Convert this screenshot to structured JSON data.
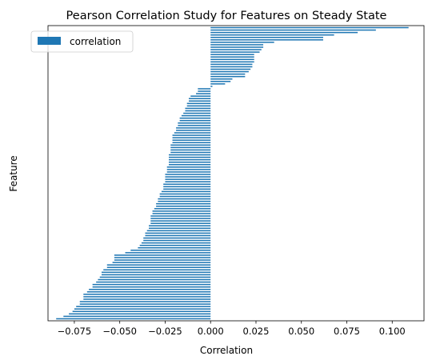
{
  "chart_data": {
    "type": "bar",
    "orientation": "horizontal",
    "title": "Pearson Correlation Study for Features on Steady State",
    "xlabel": "Correlation",
    "ylabel": "Feature",
    "xlim": [
      -0.0895,
      0.1175
    ],
    "xticks": [
      -0.075,
      -0.05,
      -0.025,
      0.0,
      0.025,
      0.05,
      0.075,
      0.1
    ],
    "xtick_labels": [
      "−0.075",
      "−0.050",
      "−0.025",
      "0.000",
      "0.025",
      "0.050",
      "0.075",
      "0.100"
    ],
    "ytick_labels_shown": false,
    "grid": false,
    "legend": {
      "position": "top-left",
      "entries": [
        "correlation"
      ]
    },
    "series": [
      {
        "name": "correlation",
        "color": "#1f77b4",
        "values": [
          0.109,
          0.091,
          0.081,
          0.068,
          0.062,
          0.062,
          0.035,
          0.029,
          0.029,
          0.028,
          0.027,
          0.024,
          0.024,
          0.024,
          0.024,
          0.023,
          0.023,
          0.022,
          0.021,
          0.019,
          0.019,
          0.012,
          0.011,
          0.008,
          0.001,
          -0.007,
          -0.007,
          -0.008,
          -0.011,
          -0.012,
          -0.012,
          -0.013,
          -0.013,
          -0.014,
          -0.014,
          -0.015,
          -0.016,
          -0.017,
          -0.017,
          -0.018,
          -0.018,
          -0.019,
          -0.019,
          -0.02,
          -0.021,
          -0.021,
          -0.021,
          -0.021,
          -0.022,
          -0.022,
          -0.022,
          -0.022,
          -0.023,
          -0.023,
          -0.023,
          -0.023,
          -0.023,
          -0.024,
          -0.024,
          -0.024,
          -0.025,
          -0.025,
          -0.025,
          -0.025,
          -0.026,
          -0.026,
          -0.026,
          -0.027,
          -0.028,
          -0.028,
          -0.029,
          -0.029,
          -0.03,
          -0.03,
          -0.031,
          -0.032,
          -0.032,
          -0.033,
          -0.033,
          -0.033,
          -0.033,
          -0.034,
          -0.034,
          -0.035,
          -0.036,
          -0.036,
          -0.037,
          -0.037,
          -0.038,
          -0.039,
          -0.04,
          -0.044,
          -0.047,
          -0.053,
          -0.053,
          -0.053,
          -0.054,
          -0.057,
          -0.057,
          -0.059,
          -0.06,
          -0.06,
          -0.061,
          -0.062,
          -0.063,
          -0.065,
          -0.065,
          -0.067,
          -0.068,
          -0.07,
          -0.07,
          -0.07,
          -0.072,
          -0.072,
          -0.074,
          -0.075,
          -0.076,
          -0.078,
          -0.081,
          -0.085
        ]
      }
    ]
  }
}
